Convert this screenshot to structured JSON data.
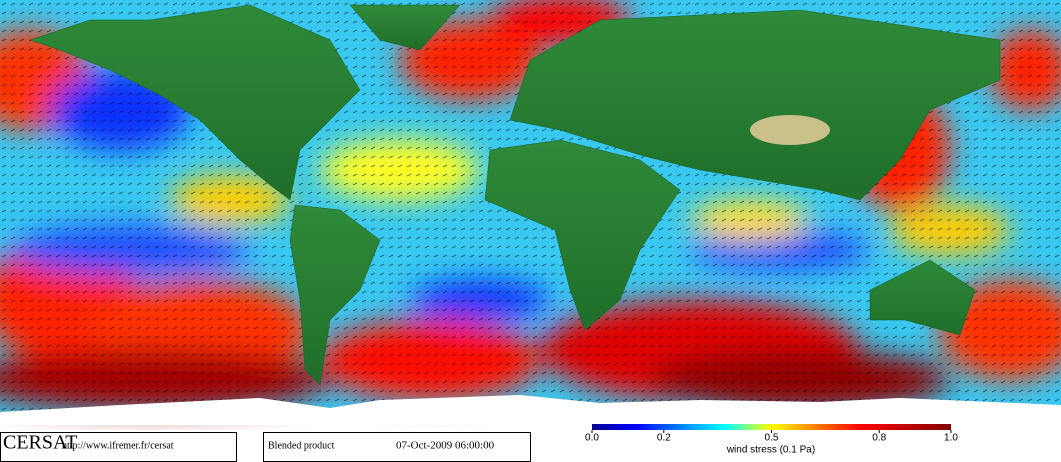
{
  "credit": {
    "logo": "CERSAT",
    "url": "http://www.ifremer.fr/cersat"
  },
  "product": {
    "name": "Blended product",
    "date": "07-Oct-2009 06:00:00"
  },
  "colorbar": {
    "label": "wind stress (0.1 Pa)",
    "lim": [
      0,
      1
    ],
    "ticks": [
      {
        "value": 0,
        "label": "0.0"
      },
      0.2,
      0.5,
      0.8,
      {
        "value": 1,
        "label": "1.0"
      }
    ]
  }
}
